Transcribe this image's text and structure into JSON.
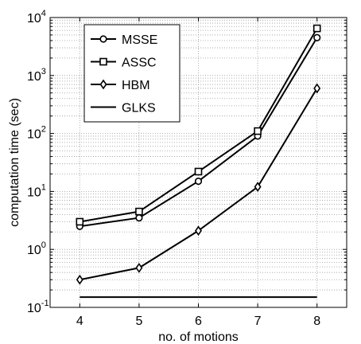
{
  "chart_data": {
    "type": "line",
    "xlabel": "no. of motions",
    "ylabel": "computation time (sec)",
    "x": [
      4,
      5,
      6,
      7,
      8
    ],
    "xlim": [
      3.5,
      8.5
    ],
    "ylim": [
      0.1,
      10000
    ],
    "yscale": "log",
    "grid": true,
    "legend_position": "top-left",
    "x_ticks": [
      "4",
      "5",
      "6",
      "7",
      "8"
    ],
    "y_ticks": [
      {
        "base": "10",
        "exp": "-1",
        "value": 0.1
      },
      {
        "base": "10",
        "exp": "0",
        "value": 1
      },
      {
        "base": "10",
        "exp": "1",
        "value": 10
      },
      {
        "base": "10",
        "exp": "2",
        "value": 100
      },
      {
        "base": "10",
        "exp": "3",
        "value": 1000
      },
      {
        "base": "10",
        "exp": "4",
        "value": 10000
      }
    ],
    "series": [
      {
        "name": "MSSE",
        "marker": "circle",
        "values": [
          2.5,
          3.5,
          15,
          90,
          4500
        ]
      },
      {
        "name": "ASSC",
        "marker": "square",
        "values": [
          3.0,
          4.5,
          22,
          110,
          6500
        ]
      },
      {
        "name": "HBM",
        "marker": "diamond",
        "values": [
          0.3,
          0.48,
          2.1,
          12,
          600
        ]
      },
      {
        "name": "GLKS",
        "marker": "none",
        "values": [
          0.15,
          0.15,
          0.15,
          0.15,
          0.15
        ]
      }
    ]
  }
}
